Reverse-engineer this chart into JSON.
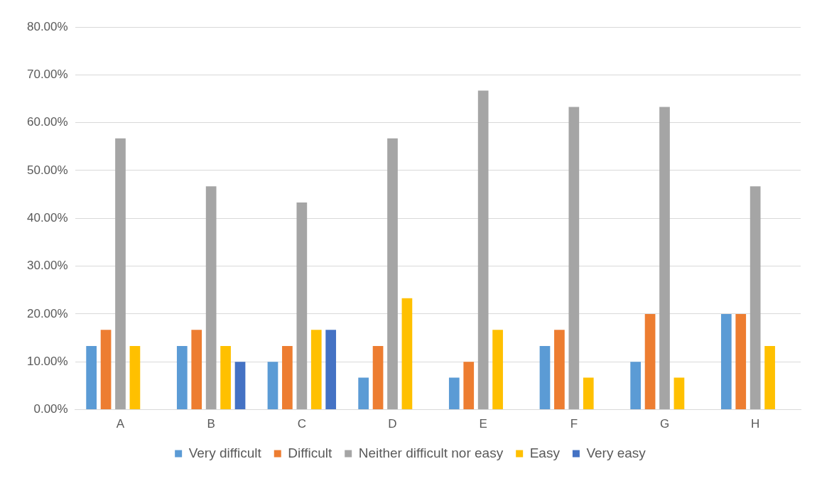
{
  "chart_data": {
    "type": "bar",
    "categories": [
      "A",
      "B",
      "C",
      "D",
      "E",
      "F",
      "G",
      "H"
    ],
    "series": [
      {
        "name": "Very difficult",
        "color": "#5b9bd5",
        "values": [
          13.3,
          13.3,
          10,
          6.7,
          6.7,
          13.3,
          10,
          20
        ]
      },
      {
        "name": "Difficult",
        "color": "#ed7d31",
        "values": [
          16.7,
          16.7,
          13.3,
          13.3,
          10,
          16.7,
          20,
          20
        ]
      },
      {
        "name": "Neither difficult nor easy",
        "color": "#a5a5a5",
        "values": [
          56.7,
          46.7,
          43.3,
          56.7,
          66.7,
          63.3,
          63.3,
          46.7
        ]
      },
      {
        "name": "Easy",
        "color": "#ffc000",
        "values": [
          13.3,
          13.3,
          16.7,
          23.3,
          16.7,
          6.7,
          6.7,
          13.3
        ]
      },
      {
        "name": "Very easy",
        "color": "#4472c4",
        "values": [
          0,
          10,
          16.7,
          0,
          0,
          0,
          0,
          0
        ]
      }
    ],
    "ylim": [
      0,
      80
    ],
    "yticks": [
      {
        "value": 0,
        "label": "0.00%"
      },
      {
        "value": 10,
        "label": "10.00%"
      },
      {
        "value": 20,
        "label": "20.00%"
      },
      {
        "value": 30,
        "label": "30.00%"
      },
      {
        "value": 40,
        "label": "40.00%"
      },
      {
        "value": 50,
        "label": "50.00%"
      },
      {
        "value": 60,
        "label": "60.00%"
      },
      {
        "value": 70,
        "label": "70.00%"
      },
      {
        "value": 80,
        "label": "80.00%"
      }
    ],
    "grid": "y",
    "legend": "bottom"
  }
}
